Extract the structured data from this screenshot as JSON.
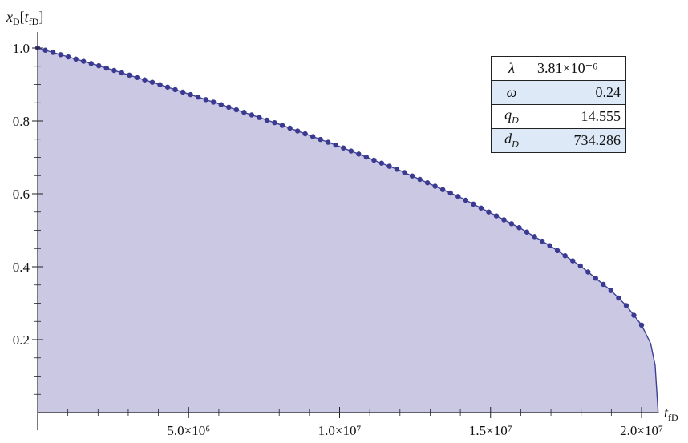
{
  "chart_data": {
    "type": "area",
    "ylabel": "x_D[t_fD]",
    "xlabel": "t_fD",
    "xlim": [
      0,
      20800000
    ],
    "ylim": [
      0,
      1.05
    ],
    "x_ticks": [
      {
        "value": 5000000,
        "label": "5.0×10⁶"
      },
      {
        "value": 10000000,
        "label": "1.0×10⁷"
      },
      {
        "value": 15000000,
        "label": "1.5×10⁷"
      },
      {
        "value": 20000000,
        "label": "2.0×10⁷"
      }
    ],
    "y_ticks": [
      {
        "value": 0.2,
        "label": "0.2"
      },
      {
        "value": 0.4,
        "label": "0.4"
      },
      {
        "value": 0.6,
        "label": "0.6"
      },
      {
        "value": 0.8,
        "label": "0.8"
      },
      {
        "value": 1.0,
        "label": "1.0"
      }
    ],
    "curve_end_x": 20550000,
    "series": [
      {
        "x": [
          0,
          2000000,
          4000000,
          6000000,
          8000000,
          10000000,
          12000000,
          14000000,
          16000000,
          17000000,
          18000000,
          19000000,
          19500000,
          20000000,
          20300000,
          20450000,
          20550000
        ],
        "y": [
          1.0,
          0.952,
          0.901,
          0.847,
          0.791,
          0.73,
          0.664,
          0.59,
          0.505,
          0.456,
          0.401,
          0.334,
          0.293,
          0.24,
          0.19,
          0.13,
          0.0
        ]
      }
    ],
    "colors": {
      "fill": "#cbc8e3",
      "line": "#3f3f97",
      "marker": "#3a3a90"
    },
    "marker_count": 80,
    "grid": false,
    "legend": "none"
  },
  "params": [
    {
      "symbol": "λ",
      "value": "3.81×10⁻⁶",
      "shaded": false
    },
    {
      "symbol": "ω",
      "value": "0.24",
      "shaded": true
    },
    {
      "symbol": "q_D",
      "value": "14.555",
      "shaded": false
    },
    {
      "symbol": "d_D",
      "value": "734.286",
      "shaded": true
    }
  ]
}
